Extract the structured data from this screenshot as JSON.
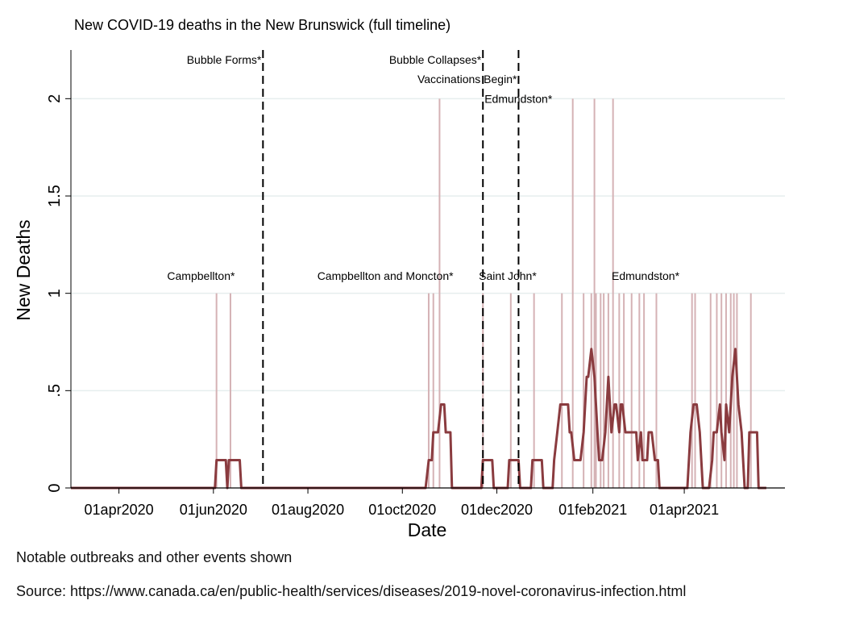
{
  "chart_data": {
    "type": "line",
    "title": "New COVID-19 deaths in the New Brunswick (full timeline)",
    "xlabel": "Date",
    "ylabel": "New Deaths",
    "x_range": [
      "2020-03-01",
      "2021-06-05"
    ],
    "ylim": [
      0,
      2.25
    ],
    "yticks": [
      {
        "value": 0,
        "label": "0"
      },
      {
        "value": 0.5,
        "label": ".5"
      },
      {
        "value": 1,
        "label": "1"
      },
      {
        "value": 1.5,
        "label": "1.5"
      },
      {
        "value": 2,
        "label": "2"
      }
    ],
    "xticks": [
      {
        "date": "2020-04-01",
        "label": "01apr2020"
      },
      {
        "date": "2020-06-01",
        "label": "01jun2020"
      },
      {
        "date": "2020-08-01",
        "label": "01aug2020"
      },
      {
        "date": "2020-10-01",
        "label": "01oct2020"
      },
      {
        "date": "2020-12-01",
        "label": "01dec2020"
      },
      {
        "date": "2021-02-01",
        "label": "01feb2021"
      },
      {
        "date": "2021-04-01",
        "label": "01apr2021"
      }
    ],
    "grid": true,
    "colors": {
      "line": "#8a3b3f",
      "spikes": "#d5b2b5",
      "grid": "#e6eeee",
      "events": "#000000"
    },
    "daily_deaths": [
      {
        "date": "2020-06-03",
        "value": 1
      },
      {
        "date": "2020-06-12",
        "value": 1
      },
      {
        "date": "2020-10-18",
        "value": 1
      },
      {
        "date": "2020-10-21",
        "value": 1
      },
      {
        "date": "2020-10-25",
        "value": 2
      },
      {
        "date": "2020-11-22",
        "value": 1
      },
      {
        "date": "2020-12-10",
        "value": 1
      },
      {
        "date": "2020-12-25",
        "value": 1
      },
      {
        "date": "2021-01-12",
        "value": 1
      },
      {
        "date": "2021-01-19",
        "value": 2
      },
      {
        "date": "2021-01-26",
        "value": 1
      },
      {
        "date": "2021-01-31",
        "value": 1
      },
      {
        "date": "2021-02-03",
        "value": 1
      },
      {
        "date": "2021-02-02",
        "value": 2
      },
      {
        "date": "2021-02-06",
        "value": 1
      },
      {
        "date": "2021-02-08",
        "value": 1
      },
      {
        "date": "2021-02-11",
        "value": 1
      },
      {
        "date": "2021-02-14",
        "value": 2
      },
      {
        "date": "2021-02-18",
        "value": 1
      },
      {
        "date": "2021-02-21",
        "value": 1
      },
      {
        "date": "2021-02-26",
        "value": 1
      },
      {
        "date": "2021-03-03",
        "value": 1
      },
      {
        "date": "2021-03-06",
        "value": 1
      },
      {
        "date": "2021-03-14",
        "value": 1
      },
      {
        "date": "2021-04-06",
        "value": 1
      },
      {
        "date": "2021-04-08",
        "value": 1
      },
      {
        "date": "2021-04-18",
        "value": 1
      },
      {
        "date": "2021-04-22",
        "value": 1
      },
      {
        "date": "2021-04-25",
        "value": 1
      },
      {
        "date": "2021-04-28",
        "value": 1
      },
      {
        "date": "2021-05-01",
        "value": 1
      },
      {
        "date": "2021-05-03",
        "value": 1
      },
      {
        "date": "2021-05-05",
        "value": 1
      },
      {
        "date": "2021-05-14",
        "value": 1
      }
    ],
    "series": [
      {
        "points": [
          [
            "2020-03-01",
            0
          ],
          [
            "2020-06-02",
            0
          ],
          [
            "2020-06-03",
            0.143
          ],
          [
            "2020-06-09",
            0.143
          ],
          [
            "2020-06-10",
            0
          ],
          [
            "2020-06-11",
            0.143
          ],
          [
            "2020-06-18",
            0.143
          ],
          [
            "2020-06-19",
            0
          ],
          [
            "2020-10-16",
            0
          ],
          [
            "2020-10-18",
            0.143
          ],
          [
            "2020-10-20",
            0.143
          ],
          [
            "2020-10-21",
            0.286
          ],
          [
            "2020-10-24",
            0.286
          ],
          [
            "2020-10-26",
            0.429
          ],
          [
            "2020-10-28",
            0.429
          ],
          [
            "2020-10-29",
            0.286
          ],
          [
            "2020-11-01",
            0.286
          ],
          [
            "2020-11-02",
            0
          ],
          [
            "2020-11-21",
            0
          ],
          [
            "2020-11-22",
            0.143
          ],
          [
            "2020-11-28",
            0.143
          ],
          [
            "2020-11-29",
            0
          ],
          [
            "2020-12-08",
            0
          ],
          [
            "2020-12-09",
            0.143
          ],
          [
            "2020-12-15",
            0.143
          ],
          [
            "2020-12-16",
            0
          ],
          [
            "2020-12-23",
            0
          ],
          [
            "2020-12-24",
            0.143
          ],
          [
            "2020-12-30",
            0.143
          ],
          [
            "2020-12-31",
            0
          ],
          [
            "2021-01-06",
            0
          ],
          [
            "2021-01-07",
            0.143
          ],
          [
            "2021-01-09",
            0.286
          ],
          [
            "2021-01-11",
            0.429
          ],
          [
            "2021-01-16",
            0.429
          ],
          [
            "2021-01-17",
            0.286
          ],
          [
            "2021-01-18",
            0.286
          ],
          [
            "2021-01-20",
            0.143
          ],
          [
            "2021-01-24",
            0.143
          ],
          [
            "2021-01-26",
            0.286
          ],
          [
            "2021-01-28",
            0.571
          ],
          [
            "2021-01-29",
            0.571
          ],
          [
            "2021-01-31",
            0.714
          ],
          [
            "2021-02-02",
            0.571
          ],
          [
            "2021-02-04",
            0.286
          ],
          [
            "2021-02-05",
            0.143
          ],
          [
            "2021-02-07",
            0.143
          ],
          [
            "2021-02-09",
            0.286
          ],
          [
            "2021-02-11",
            0.571
          ],
          [
            "2021-02-13",
            0.286
          ],
          [
            "2021-02-15",
            0.429
          ],
          [
            "2021-02-16",
            0.429
          ],
          [
            "2021-02-18",
            0.286
          ],
          [
            "2021-02-19",
            0.429
          ],
          [
            "2021-02-20",
            0.429
          ],
          [
            "2021-02-22",
            0.286
          ],
          [
            "2021-03-01",
            0.286
          ],
          [
            "2021-03-02",
            0.143
          ],
          [
            "2021-03-04",
            0.286
          ],
          [
            "2021-03-05",
            0.143
          ],
          [
            "2021-03-08",
            0.143
          ],
          [
            "2021-03-09",
            0.286
          ],
          [
            "2021-03-11",
            0.286
          ],
          [
            "2021-03-13",
            0.143
          ],
          [
            "2021-03-15",
            0.143
          ],
          [
            "2021-03-16",
            0
          ],
          [
            "2021-04-03",
            0
          ],
          [
            "2021-04-05",
            0.286
          ],
          [
            "2021-04-07",
            0.429
          ],
          [
            "2021-04-09",
            0.429
          ],
          [
            "2021-04-11",
            0.286
          ],
          [
            "2021-04-13",
            0
          ],
          [
            "2021-04-17",
            0
          ],
          [
            "2021-04-19",
            0.143
          ],
          [
            "2021-04-20",
            0.286
          ],
          [
            "2021-04-22",
            0.286
          ],
          [
            "2021-04-24",
            0.429
          ],
          [
            "2021-04-25",
            0.286
          ],
          [
            "2021-04-27",
            0.143
          ],
          [
            "2021-04-28",
            0.429
          ],
          [
            "2021-04-30",
            0.286
          ],
          [
            "2021-05-02",
            0.571
          ],
          [
            "2021-05-04",
            0.714
          ],
          [
            "2021-05-06",
            0.429
          ],
          [
            "2021-05-08",
            0.286
          ],
          [
            "2021-05-10",
            0
          ],
          [
            "2021-05-12",
            0
          ],
          [
            "2021-05-13",
            0.286
          ],
          [
            "2021-05-18",
            0.286
          ],
          [
            "2021-05-19",
            0
          ],
          [
            "2021-05-24",
            0
          ]
        ]
      }
    ],
    "event_lines": [
      {
        "date": "2020-07-03"
      },
      {
        "date": "2020-11-22"
      },
      {
        "date": "2020-12-15"
      }
    ],
    "annotations": [
      {
        "text": "Bubble Forms*",
        "date": "2020-07-03",
        "value": 2.2,
        "anchor": "end"
      },
      {
        "text": "Bubble Collapses*",
        "date": "2020-11-22",
        "value": 2.2,
        "anchor": "end"
      },
      {
        "text": "Vaccinations Begin*",
        "date": "2020-12-15",
        "value": 2.1,
        "anchor": "end"
      },
      {
        "text": "Edmundston*",
        "date": "2020-11-22",
        "value": 2.0,
        "anchor": "start"
      },
      {
        "text": "Campbellton*",
        "date": "2020-05-24",
        "value": 1.09,
        "anchor": "middle"
      },
      {
        "text": "Campbellton and Moncton*",
        "date": "2020-09-20",
        "value": 1.09,
        "anchor": "middle"
      },
      {
        "text": "Saint John*",
        "date": "2020-12-08",
        "value": 1.09,
        "anchor": "middle"
      },
      {
        "text": "Edmundston*",
        "date": "2021-03-07",
        "value": 1.09,
        "anchor": "middle"
      }
    ]
  },
  "notes": {
    "note1": "Notable outbreaks and other events shown",
    "note2": "Source: https://www.canada.ca/en/public-health/services/diseases/2019-novel-coronavirus-infection.html"
  }
}
